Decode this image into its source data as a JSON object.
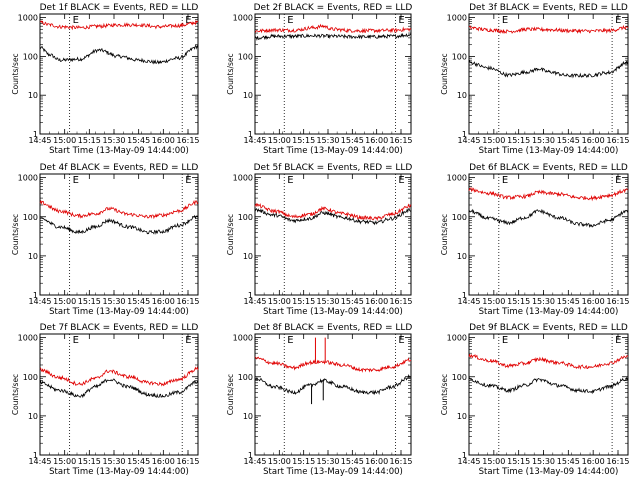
{
  "chart_data": [
    {
      "type": "line",
      "title": "Det 1f BLACK = Events, RED = LLD",
      "xlabel": "Start Time (13-May-09 14:44:00)",
      "ylabel": "Counts/sec",
      "yscale": "log",
      "ylim": [
        1,
        1000
      ],
      "x_ticks": [
        "14:45",
        "15:00",
        "15:15",
        "15:30",
        "15:45",
        "16:00",
        "16:15"
      ],
      "y_ticks": [
        "1",
        "10",
        "100",
        "1000"
      ],
      "markers": [
        "E",
        "E"
      ],
      "series": [
        {
          "color": "#000000",
          "anchors": [
            [
              0,
              170
            ],
            [
              5,
              110
            ],
            [
              10,
              80
            ],
            [
              20,
              85
            ],
            [
              30,
              145
            ],
            [
              40,
              100
            ],
            [
              50,
              80
            ],
            [
              60,
              70
            ],
            [
              70,
              90
            ],
            [
              80,
              180
            ]
          ]
        },
        {
          "color": "#e00000",
          "anchors": [
            [
              0,
              750
            ],
            [
              5,
              650
            ],
            [
              10,
              580
            ],
            [
              20,
              550
            ],
            [
              30,
              600
            ],
            [
              40,
              650
            ],
            [
              50,
              650
            ],
            [
              60,
              580
            ],
            [
              70,
              620
            ],
            [
              80,
              750
            ]
          ]
        }
      ]
    },
    {
      "type": "line",
      "title": "Det 2f BLACK = Events, RED = LLD",
      "xlabel": "Start Time (13-May-09 14:44:00)",
      "ylabel": "Counts/sec",
      "yscale": "log",
      "ylim": [
        1,
        1000
      ],
      "x_ticks": [
        "14:45",
        "15:00",
        "15:15",
        "15:30",
        "15:45",
        "16:00",
        "16:15"
      ],
      "y_ticks": [
        "1",
        "10",
        "100",
        "1000"
      ],
      "markers": [
        "E",
        "E"
      ],
      "series": [
        {
          "color": "#000000",
          "anchors": [
            [
              0,
              300
            ],
            [
              10,
              330
            ],
            [
              20,
              330
            ],
            [
              30,
              340
            ],
            [
              40,
              330
            ],
            [
              50,
              320
            ],
            [
              60,
              320
            ],
            [
              70,
              330
            ],
            [
              80,
              360
            ]
          ]
        },
        {
          "color": "#e00000",
          "anchors": [
            [
              0,
              450
            ],
            [
              10,
              480
            ],
            [
              20,
              470
            ],
            [
              30,
              550
            ],
            [
              35,
              600
            ],
            [
              40,
              500
            ],
            [
              50,
              460
            ],
            [
              60,
              460
            ],
            [
              70,
              470
            ],
            [
              80,
              500
            ]
          ]
        }
      ]
    },
    {
      "type": "line",
      "title": "Det 3f BLACK = Events, RED = LLD",
      "xlabel": "Start Time (13-May-09 14:44:00)",
      "ylabel": "Counts/sec",
      "yscale": "log",
      "ylim": [
        1,
        1000
      ],
      "x_ticks": [
        "14:45",
        "15:00",
        "15:15",
        "15:30",
        "15:45",
        "16:00",
        "16:15"
      ],
      "y_ticks": [
        "1",
        "10",
        "100",
        "1000"
      ],
      "markers": [
        "E",
        "E"
      ],
      "series": [
        {
          "color": "#000000",
          "anchors": [
            [
              0,
              70
            ],
            [
              10,
              50
            ],
            [
              20,
              33
            ],
            [
              30,
              40
            ],
            [
              35,
              48
            ],
            [
              40,
              40
            ],
            [
              50,
              32
            ],
            [
              60,
              32
            ],
            [
              70,
              38
            ],
            [
              80,
              70
            ]
          ]
        },
        {
          "color": "#e00000",
          "anchors": [
            [
              0,
              550
            ],
            [
              10,
              480
            ],
            [
              20,
              440
            ],
            [
              30,
              500
            ],
            [
              40,
              490
            ],
            [
              50,
              460
            ],
            [
              60,
              450
            ],
            [
              70,
              460
            ],
            [
              80,
              560
            ]
          ]
        }
      ]
    },
    {
      "type": "line",
      "title": "Det 4f BLACK = Events, RED = LLD",
      "xlabel": "Start Time (13-May-09 14:44:00)",
      "ylabel": "Counts/sec",
      "yscale": "log",
      "ylim": [
        1,
        1000
      ],
      "x_ticks": [
        "14:45",
        "15:00",
        "15:15",
        "15:30",
        "15:45",
        "16:00",
        "16:15"
      ],
      "y_ticks": [
        "1",
        "10",
        "100",
        "1000"
      ],
      "markers": [
        "E",
        "E"
      ],
      "series": [
        {
          "color": "#000000",
          "anchors": [
            [
              0,
              90
            ],
            [
              10,
              55
            ],
            [
              20,
              40
            ],
            [
              28,
              55
            ],
            [
              35,
              80
            ],
            [
              45,
              55
            ],
            [
              55,
              40
            ],
            [
              62,
              42
            ],
            [
              70,
              60
            ],
            [
              80,
              100
            ]
          ]
        },
        {
          "color": "#e00000",
          "anchors": [
            [
              0,
              230
            ],
            [
              10,
              140
            ],
            [
              20,
              105
            ],
            [
              28,
              120
            ],
            [
              35,
              160
            ],
            [
              45,
              115
            ],
            [
              55,
              100
            ],
            [
              62,
              110
            ],
            [
              70,
              140
            ],
            [
              80,
              240
            ]
          ]
        }
      ]
    },
    {
      "type": "line",
      "title": "Det 5f BLACK = Events, RED = LLD",
      "xlabel": "Start Time (13-May-09 14:44:00)",
      "ylabel": "Counts/sec",
      "yscale": "log",
      "ylim": [
        1,
        1000
      ],
      "x_ticks": [
        "14:45",
        "15:00",
        "15:15",
        "15:30",
        "15:45",
        "16:00",
        "16:15"
      ],
      "y_ticks": [
        "1",
        "10",
        "100",
        "1000"
      ],
      "markers": [
        "E",
        "E"
      ],
      "series": [
        {
          "color": "#000000",
          "anchors": [
            [
              0,
              150
            ],
            [
              10,
              110
            ],
            [
              20,
              80
            ],
            [
              28,
              90
            ],
            [
              35,
              125
            ],
            [
              45,
              95
            ],
            [
              55,
              75
            ],
            [
              62,
              70
            ],
            [
              70,
              90
            ],
            [
              80,
              150
            ]
          ]
        },
        {
          "color": "#e00000",
          "anchors": [
            [
              0,
              200
            ],
            [
              10,
              140
            ],
            [
              20,
              100
            ],
            [
              28,
              115
            ],
            [
              35,
              160
            ],
            [
              45,
              120
            ],
            [
              55,
              95
            ],
            [
              62,
              90
            ],
            [
              70,
              115
            ],
            [
              80,
              190
            ]
          ]
        }
      ]
    },
    {
      "type": "line",
      "title": "Det 6f BLACK = Events, RED = LLD",
      "xlabel": "Start Time (13-May-09 14:44:00)",
      "ylabel": "Counts/sec",
      "yscale": "log",
      "ylim": [
        1,
        1000
      ],
      "x_ticks": [
        "14:45",
        "15:00",
        "15:15",
        "15:30",
        "15:45",
        "16:00",
        "16:15"
      ],
      "y_ticks": [
        "1",
        "10",
        "100",
        "1000"
      ],
      "markers": [
        "E",
        "E"
      ],
      "series": [
        {
          "color": "#000000",
          "anchors": [
            [
              0,
              140
            ],
            [
              10,
              90
            ],
            [
              20,
              70
            ],
            [
              28,
              95
            ],
            [
              35,
              140
            ],
            [
              45,
              95
            ],
            [
              55,
              65
            ],
            [
              62,
              60
            ],
            [
              70,
              80
            ],
            [
              80,
              140
            ]
          ]
        },
        {
          "color": "#e00000",
          "anchors": [
            [
              0,
              500
            ],
            [
              10,
              400
            ],
            [
              20,
              310
            ],
            [
              28,
              330
            ],
            [
              35,
              420
            ],
            [
              45,
              380
            ],
            [
              55,
              310
            ],
            [
              62,
              300
            ],
            [
              70,
              350
            ],
            [
              80,
              480
            ]
          ]
        }
      ]
    },
    {
      "type": "line",
      "title": "Det 7f BLACK = Events, RED = LLD",
      "xlabel": "Start Time (13-May-09 14:44:00)",
      "ylabel": "Counts/sec",
      "yscale": "log",
      "ylim": [
        1,
        1000
      ],
      "x_ticks": [
        "14:45",
        "15:00",
        "15:15",
        "15:30",
        "15:45",
        "16:00",
        "16:15"
      ],
      "y_ticks": [
        "1",
        "10",
        "100",
        "1000"
      ],
      "markers": [
        "E",
        "E"
      ],
      "series": [
        {
          "color": "#000000",
          "anchors": [
            [
              0,
              70
            ],
            [
              10,
              45
            ],
            [
              20,
              32
            ],
            [
              28,
              55
            ],
            [
              35,
              85
            ],
            [
              45,
              55
            ],
            [
              55,
              35
            ],
            [
              62,
              32
            ],
            [
              70,
              40
            ],
            [
              80,
              75
            ]
          ]
        },
        {
          "color": "#e00000",
          "anchors": [
            [
              0,
              150
            ],
            [
              10,
              95
            ],
            [
              20,
              65
            ],
            [
              28,
              90
            ],
            [
              35,
              140
            ],
            [
              45,
              100
            ],
            [
              55,
              70
            ],
            [
              62,
              65
            ],
            [
              70,
              85
            ],
            [
              80,
              160
            ]
          ]
        }
      ]
    },
    {
      "type": "line",
      "title": "Det 8f BLACK = Events, RED = LLD",
      "xlabel": "Start Time (13-May-09 14:44:00)",
      "ylabel": "Counts/sec",
      "yscale": "log",
      "ylim": [
        1,
        1000
      ],
      "x_ticks": [
        "14:45",
        "15:00",
        "15:15",
        "15:30",
        "15:45",
        "16:00",
        "16:15"
      ],
      "y_ticks": [
        "1",
        "10",
        "100",
        "1000"
      ],
      "markers": [
        "E",
        "E"
      ],
      "series": [
        {
          "color": "#000000",
          "anchors": [
            [
              0,
              90
            ],
            [
              10,
              55
            ],
            [
              20,
              40
            ],
            [
              28,
              60
            ],
            [
              35,
              80
            ],
            [
              45,
              55
            ],
            [
              55,
              40
            ],
            [
              62,
              40
            ],
            [
              70,
              55
            ],
            [
              80,
              100
            ]
          ]
        },
        {
          "color": "#e00000",
          "anchors": [
            [
              0,
              300
            ],
            [
              10,
              220
            ],
            [
              20,
              170
            ],
            [
              28,
              230
            ],
            [
              35,
              240
            ],
            [
              45,
              200
            ],
            [
              55,
              150
            ],
            [
              62,
              150
            ],
            [
              70,
              180
            ],
            [
              80,
              270
            ]
          ]
        }
      ],
      "spikes": [
        {
          "series": 1,
          "x": 31,
          "value": 1000
        },
        {
          "series": 1,
          "x": 36,
          "value": 1000
        },
        {
          "series": 0,
          "x": 29,
          "value": 20
        },
        {
          "series": 0,
          "x": 35,
          "value": 25
        }
      ]
    },
    {
      "type": "line",
      "title": "Det 9f BLACK = Events, RED = LLD",
      "xlabel": "Start Time (13-May-09 14:44:00)",
      "ylabel": "Counts/sec",
      "yscale": "log",
      "ylim": [
        1,
        1000
      ],
      "x_ticks": [
        "14:45",
        "15:00",
        "15:15",
        "15:30",
        "15:45",
        "16:00",
        "16:15"
      ],
      "y_ticks": [
        "1",
        "10",
        "100",
        "1000"
      ],
      "markers": [
        "E",
        "E"
      ],
      "series": [
        {
          "color": "#000000",
          "anchors": [
            [
              0,
              85
            ],
            [
              10,
              60
            ],
            [
              20,
              45
            ],
            [
              28,
              60
            ],
            [
              35,
              85
            ],
            [
              45,
              60
            ],
            [
              55,
              45
            ],
            [
              62,
              42
            ],
            [
              70,
              55
            ],
            [
              80,
              90
            ]
          ]
        },
        {
          "color": "#e00000",
          "anchors": [
            [
              0,
              350
            ],
            [
              10,
              260
            ],
            [
              20,
              190
            ],
            [
              28,
              220
            ],
            [
              35,
              280
            ],
            [
              45,
              230
            ],
            [
              55,
              180
            ],
            [
              62,
              180
            ],
            [
              70,
              220
            ],
            [
              80,
              330
            ]
          ]
        }
      ]
    }
  ]
}
